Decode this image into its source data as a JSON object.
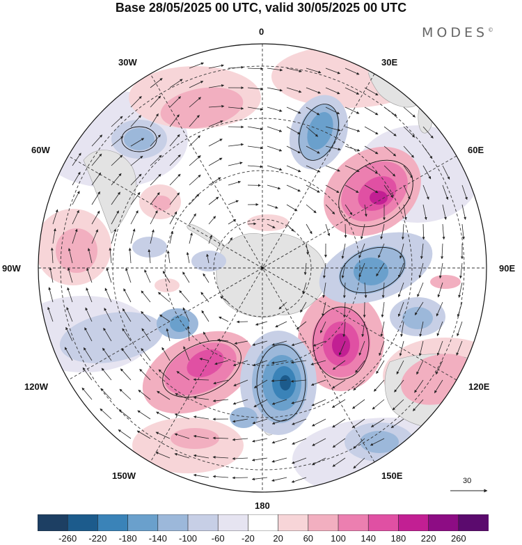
{
  "title": "Base 28/05/2025 00 UTC, valid 30/05/2025 00 UTC",
  "brand": "MODES",
  "brand_mark": "©",
  "longitude_labels": {
    "lon_0": "0",
    "lon_30e": "30E",
    "lon_60e": "60E",
    "lon_90e": "90E",
    "lon_120e": "120E",
    "lon_150e": "150E",
    "lon_180": "180",
    "lon_150w": "150W",
    "lon_120w": "120W",
    "lon_90w": "90W",
    "lon_60w": "60W",
    "lon_30w": "30W"
  },
  "reference_vector_label": "30",
  "colorbar": {
    "ticks": [
      "-260",
      "-220",
      "-180",
      "-140",
      "-100",
      "-60",
      "-20",
      "20",
      "60",
      "100",
      "140",
      "180",
      "220",
      "260"
    ],
    "colors": [
      "#1d3f63",
      "#1c5b8c",
      "#3a83b8",
      "#6aa0cc",
      "#9cb8da",
      "#c7cfe6",
      "#e6e4f1",
      "#ffffff",
      "#f7d5d8",
      "#f2afc0",
      "#ec7fb0",
      "#e050a3",
      "#c21f93",
      "#8d0c84",
      "#5b0a6e"
    ]
  },
  "map": {
    "projection": "south-polar-stereographic",
    "anomaly_units_range": [
      -260,
      260
    ],
    "features": {
      "positive_centers": [
        {
          "name": "anomaly-pos-60e",
          "value": 200
        },
        {
          "name": "anomaly-pos-110e",
          "value": 220
        },
        {
          "name": "anomaly-pos-135w",
          "value": 180
        },
        {
          "name": "anomaly-pos-20w",
          "value": 60
        },
        {
          "name": "anomaly-pos-90w",
          "value": 60
        },
        {
          "name": "anomaly-pos-50w",
          "value": 100
        },
        {
          "name": "anomaly-pos-120e",
          "value": 60
        },
        {
          "name": "anomaly-pos-30e",
          "value": 60
        }
      ],
      "negative_centers": [
        {
          "name": "anomaly-neg-30e",
          "value": -140
        },
        {
          "name": "anomaly-neg-90e",
          "value": -140
        },
        {
          "name": "anomaly-neg-165w",
          "value": -220
        },
        {
          "name": "anomaly-neg-115w",
          "value": -100
        },
        {
          "name": "anomaly-neg-45w",
          "value": -100
        },
        {
          "name": "anomaly-neg-105e",
          "value": -60
        },
        {
          "name": "anomaly-neg-150e",
          "value": -60
        }
      ]
    }
  }
}
